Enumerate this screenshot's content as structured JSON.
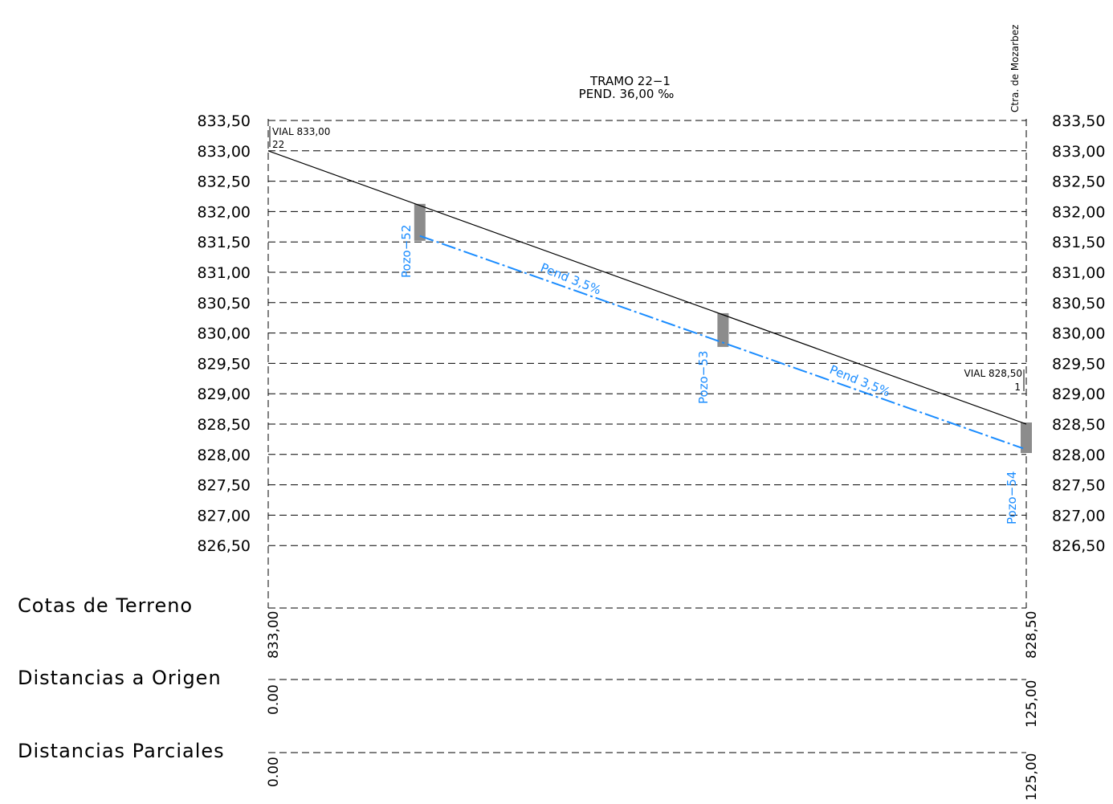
{
  "title": {
    "line1": "TRAMO 22−1",
    "line2": "PEND. 36,00 ‰"
  },
  "road_label": "Ctra. de Mozarbez",
  "elevation_axis": [
    "833,50",
    "833,00",
    "832,50",
    "832,00",
    "831,50",
    "831,00",
    "830,50",
    "830,00",
    "829,50",
    "829,00",
    "828,50",
    "828,00",
    "827,50",
    "827,00",
    "826,50"
  ],
  "elevation_values": [
    833.5,
    833.0,
    832.5,
    832.0,
    831.5,
    831.0,
    830.5,
    830.0,
    829.5,
    829.0,
    828.5,
    828.0,
    827.5,
    827.0,
    826.5
  ],
  "start_marker": {
    "vial": "VIAL 833,00",
    "number": "22"
  },
  "end_marker": {
    "vial": "VIAL 828,50",
    "number": "1"
  },
  "terrain": {
    "start_distance": 0,
    "start_elev": 833.0,
    "end_distance": 125,
    "end_elev": 828.5
  },
  "pipe": {
    "color": "#1a8cff",
    "start": {
      "distance": 25,
      "elev": 831.6
    },
    "end": {
      "distance": 125,
      "elev": 828.1
    },
    "slope_labels": [
      "Pend 3,5%",
      "Pend 3,5%"
    ]
  },
  "pozos": [
    {
      "name": "Pozo−52",
      "distance": 25
    },
    {
      "name": "Pozo−53",
      "distance": 75
    },
    {
      "name": "Pozo−54",
      "distance": 125
    }
  ],
  "rows": {
    "cotas": {
      "label": "Cotas de Terreno",
      "start": "833,00",
      "end": "828,50"
    },
    "origen": {
      "label": "Distancias a Origen",
      "start": "0.00",
      "end": "125,00"
    },
    "parciales": {
      "label": "Distancias Parciales",
      "start": "0.00",
      "end": "125,00"
    }
  }
}
